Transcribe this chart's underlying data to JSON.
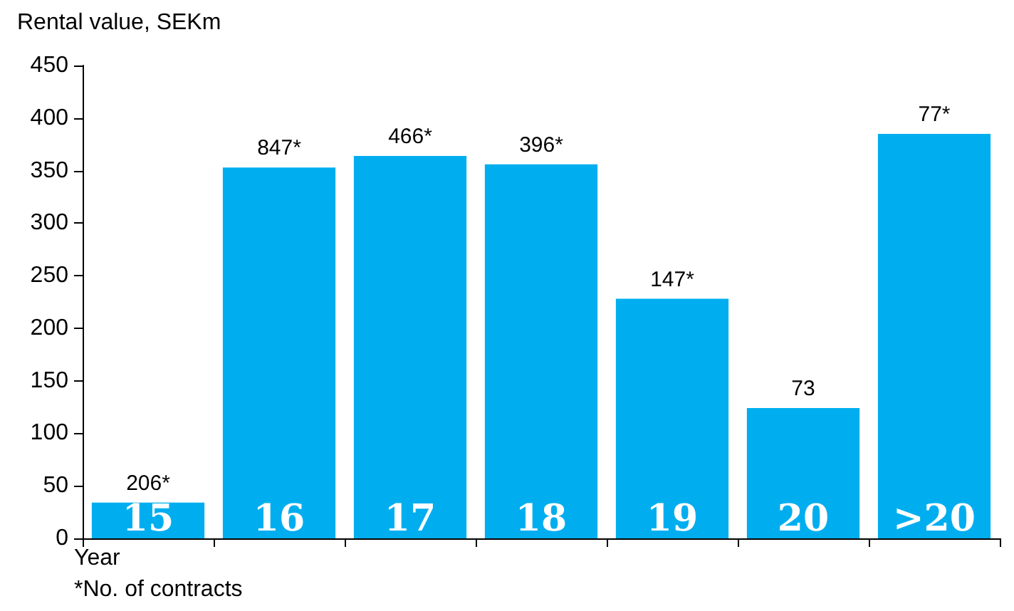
{
  "chart_data": {
    "type": "bar",
    "ylabel": "Rental value, SEKm",
    "xlabel": "Year",
    "categories": [
      "15",
      "16",
      "17",
      "18",
      "19",
      "20",
      ">20"
    ],
    "values": [
      34,
      353,
      364,
      356,
      228,
      124,
      385
    ],
    "color": "#00aeef",
    "ylim": [
      0,
      450
    ],
    "yticks": [
      0,
      50,
      100,
      150,
      200,
      250,
      300,
      350,
      400,
      450
    ],
    "grid": false,
    "annotations": [
      {
        "text": "206*",
        "x": "15",
        "y": 34
      },
      {
        "text": "847*",
        "x": "16",
        "y": 353
      },
      {
        "text": "466*",
        "x": "17",
        "y": 364
      },
      {
        "text": "396*",
        "x": "18",
        "y": 356
      },
      {
        "text": "147*",
        "x": "19",
        "y": 228
      },
      {
        "text": "73",
        "x": "20",
        "y": 124
      },
      {
        "text": "77*",
        "x": ">20",
        "y": 385
      },
      "*No. of contracts"
    ]
  }
}
